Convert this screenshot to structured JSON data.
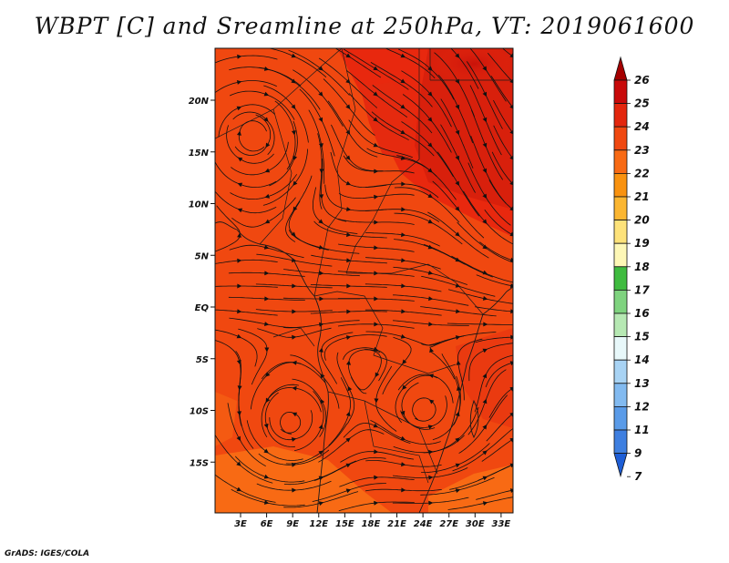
{
  "title": "WBPT [C] and Sreamline at 250hPa, VT: 2019061600",
  "credit": "GrADS: IGES/COLA",
  "map": {
    "lat_labels": [
      {
        "text": "20N",
        "lat": 20
      },
      {
        "text": "15N",
        "lat": 15
      },
      {
        "text": "10N",
        "lat": 10
      },
      {
        "text": "5N",
        "lat": 5
      },
      {
        "text": "EQ",
        "lat": 0
      },
      {
        "text": "5S",
        "lat": -5
      },
      {
        "text": "10S",
        "lat": -10
      },
      {
        "text": "15S",
        "lat": -15
      }
    ],
    "lon_labels": [
      {
        "text": "3E",
        "lon": 3
      },
      {
        "text": "6E",
        "lon": 6
      },
      {
        "text": "9E",
        "lon": 9
      },
      {
        "text": "12E",
        "lon": 12
      },
      {
        "text": "15E",
        "lon": 15
      },
      {
        "text": "18E",
        "lon": 18
      },
      {
        "text": "21E",
        "lon": 21
      },
      {
        "text": "24E",
        "lon": 24
      },
      {
        "text": "27E",
        "lon": 27
      },
      {
        "text": "30E",
        "lon": 30
      },
      {
        "text": "33E",
        "lon": 33
      }
    ],
    "colors": {
      "base": "#f04810",
      "warm": "#e8280e",
      "hot": "#d2160c",
      "cool": "#f86a14"
    }
  },
  "colorbar": {
    "labels": [
      "26",
      "25",
      "24",
      "23",
      "22",
      "21",
      "20",
      "19",
      "18",
      "17",
      "16",
      "15",
      "14",
      "13",
      "12",
      "11",
      "9",
      "7"
    ],
    "colors": [
      "#a50000",
      "#c80a0a",
      "#e3260d",
      "#f04810",
      "#f86a14",
      "#f9920f",
      "#fbb631",
      "#fde27a",
      "#fdf7b6",
      "#3fbb3f",
      "#7fd37f",
      "#b6e8b3",
      "#e8f8fa",
      "#a8d3f4",
      "#82baf0",
      "#5a9be8",
      "#3e7fe0",
      "#1e5ed6"
    ]
  }
}
